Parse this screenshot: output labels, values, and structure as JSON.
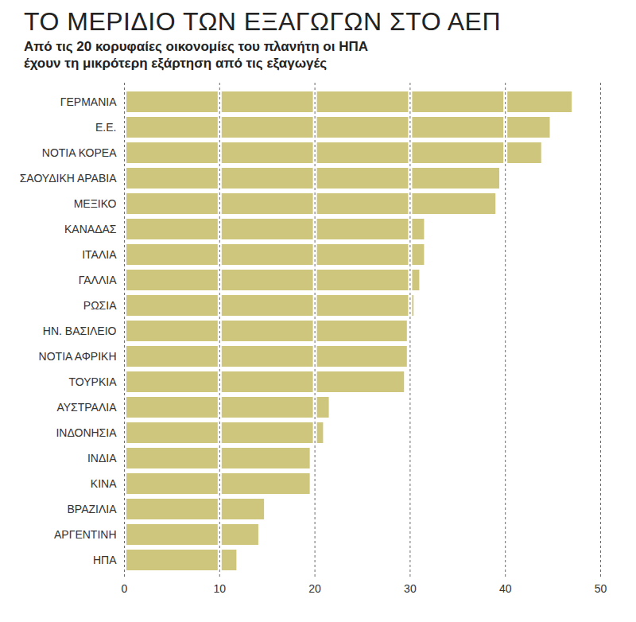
{
  "chart_data": {
    "type": "bar",
    "orientation": "horizontal",
    "title": "ΤΟ ΜΕΡΙΔΙΟ ΤΩΝ ΕΞΑΓΩΓΩΝ ΣΤΟ ΑΕΠ",
    "subtitle": "Από τις 20 κορυφαίες οικονομίες του πλανήτη οι ΗΠΑ έχουν τη μικρότερη εξάρτηση από τις εξαγωγές",
    "categories": [
      "ΓΕΡΜΑΝΙΑ",
      "Ε.Ε.",
      "ΝΟΤΙΑ ΚΟΡΕΑ",
      "ΣΑΟΥΔΙΚΗ ΑΡΑΒΙΑ",
      "ΜΕΞΙΚΟ",
      "ΚΑΝΑΔΑΣ",
      "ΙΤΑΛΙΑ",
      "ΓΑΛΛΙΑ",
      "ΡΩΣΙΑ",
      "ΗΝ. ΒΑΣΙΛΕΙΟ",
      "ΝΟΤΙΑ ΑΦΡΙΚΗ",
      "ΤΟΥΡΚΙΑ",
      "ΑΥΣΤΡΑΛΙΑ",
      "ΙΝΔΟΝΗΣΙΑ",
      "ΙΝΔΙΑ",
      "ΚΙΝΑ",
      "ΒΡΑΖΙΛΙΑ",
      "ΑΡΓΕΝΤΙΝΗ",
      "ΗΠΑ"
    ],
    "values": [
      47.0,
      44.7,
      43.8,
      39.4,
      39.0,
      31.5,
      31.5,
      31.0,
      30.4,
      29.7,
      29.7,
      29.4,
      21.5,
      20.9,
      19.5,
      19.5,
      14.7,
      14.1,
      11.8
    ],
    "color": "#cdc67c",
    "xlim": [
      0,
      50
    ],
    "xticks": [
      0,
      10,
      20,
      30,
      40,
      50
    ],
    "grid": true
  }
}
